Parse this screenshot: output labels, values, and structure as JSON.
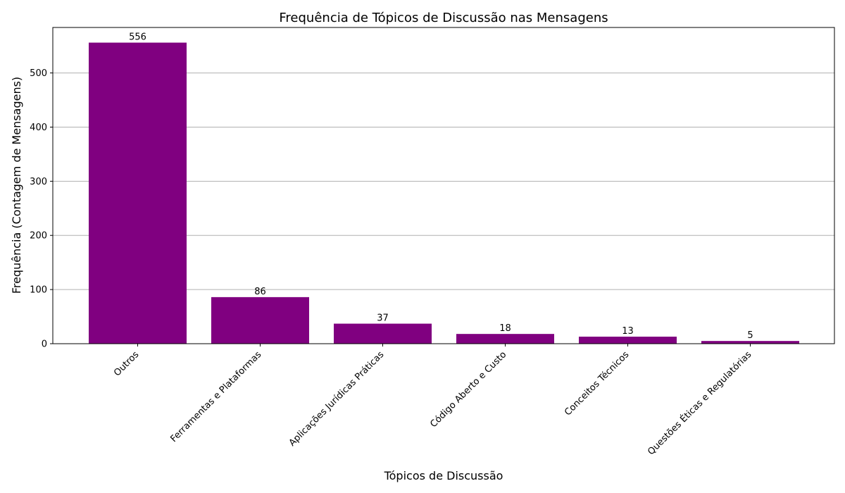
{
  "chart_data": {
    "type": "bar",
    "title": "Frequência de Tópicos de Discussão nas Mensagens",
    "xlabel": "Tópicos de Discussão",
    "ylabel": "Frequência (Contagem de Mensagens)",
    "categories": [
      "Outros",
      "Ferramentas e Plataformas",
      "Aplicações Jurídicas Práticas",
      "Código Aberto e Custo",
      "Conceitos Técnicos",
      "Questões Éticas e Regulatórias"
    ],
    "values": [
      556,
      86,
      37,
      18,
      13,
      5
    ],
    "ylim": [
      0,
      584
    ],
    "yticks": [
      0,
      100,
      200,
      300,
      400,
      500
    ],
    "grid": "y",
    "bar_color": "#800080",
    "grid_color": "#b0b0b0",
    "show_data_labels": true
  }
}
